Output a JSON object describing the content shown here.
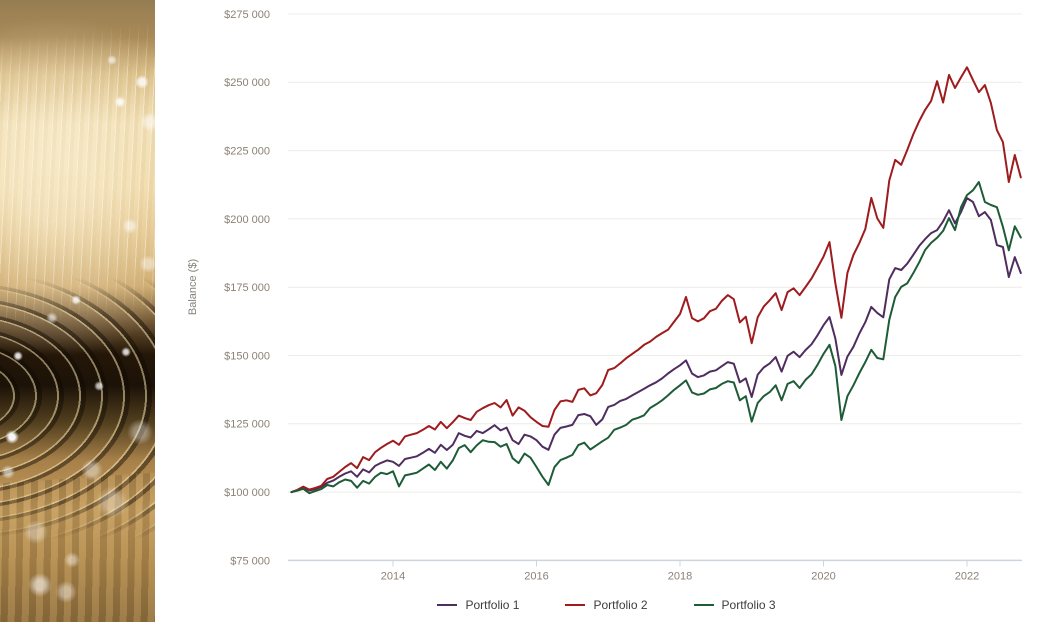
{
  "page": {
    "background": "#ffffff"
  },
  "left_panel": {
    "description": "Abstract photo of golden fiber-optic light strands swirling over a dark background with white bokeh highlights"
  },
  "colors": {
    "axis_text": "#8b8274",
    "axis_label": "#87827b",
    "grid_line": "#edece7",
    "axis_line": "#ccd5df",
    "legend_text": "#3d3d3d"
  },
  "chart_data": {
    "type": "line",
    "title": "",
    "xlabel": "",
    "ylabel": "Balance ($)",
    "x_start": "2012-07",
    "x_end": "2022-09",
    "x_interval": "monthly",
    "ylim": [
      75000,
      275000
    ],
    "grid": "horizontal",
    "legend_position": "bottom",
    "y_ticks": [
      {
        "value": 75000,
        "label": "$75 000"
      },
      {
        "value": 100000,
        "label": "$100 000"
      },
      {
        "value": 125000,
        "label": "$125 000"
      },
      {
        "value": 150000,
        "label": "$150 000"
      },
      {
        "value": 175000,
        "label": "$175 000"
      },
      {
        "value": 200000,
        "label": "$200 000"
      },
      {
        "value": 225000,
        "label": "$225 000"
      },
      {
        "value": 250000,
        "label": "$250 000"
      },
      {
        "value": 275000,
        "label": "$275 000"
      }
    ],
    "x_ticks": [
      {
        "year": 2014,
        "label": "2014"
      },
      {
        "year": 2016,
        "label": "2016"
      },
      {
        "year": 2018,
        "label": "2018"
      },
      {
        "year": 2020,
        "label": "2020"
      },
      {
        "year": 2022,
        "label": "2022"
      }
    ],
    "series": [
      {
        "name": "Portfolio 1",
        "color": "#4f2d5f",
        "values": [
          100000,
          100700,
          101600,
          100600,
          101100,
          101900,
          103400,
          104200,
          105600,
          106800,
          107600,
          105600,
          108300,
          107200,
          109600,
          110700,
          111600,
          111100,
          109600,
          112100,
          112600,
          113100,
          114400,
          115800,
          114400,
          117300,
          115400,
          117300,
          121600,
          120600,
          120000,
          122400,
          121600,
          123000,
          124500,
          122600,
          123600,
          119000,
          117600,
          121000,
          120400,
          119000,
          116600,
          115500,
          121000,
          123500,
          124000,
          124600,
          128200,
          128600,
          127800,
          124600,
          126600,
          131200,
          131900,
          133400,
          134100,
          135400,
          136600,
          137800,
          139100,
          140200,
          141600,
          143400,
          145000,
          146400,
          148200,
          143400,
          142100,
          142700,
          144100,
          144600,
          146100,
          147600,
          147000,
          140200,
          141600,
          134800,
          143000,
          145600,
          147100,
          149400,
          144100,
          149900,
          151400,
          149400,
          152000,
          154100,
          157400,
          161100,
          164100,
          156100,
          142900,
          149600,
          153200,
          158100,
          162200,
          167800,
          165600,
          164000,
          177900,
          182000,
          181300,
          183600,
          186800,
          190100,
          192600,
          194800,
          195900,
          199100,
          203200,
          198400,
          202500,
          207600,
          206200,
          201000,
          202500,
          199600,
          190400,
          189700,
          178700,
          186000,
          180200
        ]
      },
      {
        "name": "Portfolio 2",
        "color": "#9e1b1e",
        "values": [
          100000,
          100800,
          102000,
          100900,
          101500,
          102300,
          104800,
          105600,
          107400,
          109200,
          110600,
          108800,
          112800,
          111700,
          114600,
          116200,
          117600,
          118800,
          117300,
          120400,
          121000,
          121600,
          122800,
          124200,
          122900,
          125700,
          123400,
          125600,
          128000,
          127100,
          126400,
          129400,
          130700,
          131800,
          132600,
          131000,
          133700,
          128000,
          131000,
          129800,
          127400,
          125700,
          124200,
          123900,
          130000,
          133200,
          133600,
          133000,
          137400,
          138000,
          135400,
          136200,
          139200,
          144700,
          145400,
          147100,
          149000,
          150600,
          152100,
          153900,
          155100,
          156800,
          158200,
          159400,
          162300,
          165200,
          171400,
          163700,
          162500,
          163600,
          166200,
          167100,
          170000,
          172100,
          170600,
          162100,
          164200,
          154500,
          164000,
          167900,
          170200,
          172800,
          166600,
          173200,
          174600,
          172100,
          175100,
          178200,
          182100,
          186200,
          191500,
          176300,
          163800,
          180200,
          186800,
          191200,
          196300,
          207700,
          200200,
          196700,
          214100,
          221600,
          219800,
          225200,
          230900,
          235800,
          239900,
          243200,
          250400,
          242600,
          252700,
          247900,
          251800,
          255500,
          250800,
          246400,
          249000,
          242400,
          232500,
          228100,
          213500,
          223400,
          215200
        ]
      },
      {
        "name": "Portfolio 3",
        "color": "#1e5c38",
        "values": [
          100000,
          100500,
          101200,
          99600,
          100400,
          101100,
          102600,
          102100,
          103600,
          104600,
          104100,
          101600,
          104100,
          103100,
          105600,
          107100,
          106600,
          107600,
          102100,
          106100,
          106600,
          107100,
          108600,
          110100,
          108100,
          111100,
          108600,
          111600,
          116100,
          117200,
          114600,
          117100,
          119000,
          118400,
          118300,
          116600,
          117600,
          112400,
          110600,
          114100,
          112600,
          109200,
          105600,
          102600,
          109100,
          111700,
          112600,
          113600,
          117200,
          118100,
          115600,
          117100,
          118600,
          119900,
          122800,
          123600,
          124600,
          126500,
          127200,
          128100,
          130800,
          132100,
          133600,
          135400,
          137400,
          139100,
          140900,
          136500,
          135600,
          136100,
          137600,
          138100,
          139600,
          140600,
          140100,
          133600,
          135100,
          125800,
          132600,
          135100,
          136600,
          139100,
          133600,
          139600,
          140600,
          138100,
          141100,
          143100,
          146600,
          150600,
          153900,
          146100,
          126400,
          135100,
          139100,
          143600,
          147600,
          152100,
          149100,
          148600,
          163100,
          171400,
          175100,
          176400,
          180100,
          184100,
          188600,
          191200,
          193100,
          195600,
          200300,
          195900,
          204300,
          208700,
          210500,
          213500,
          206200,
          205100,
          204300,
          197100,
          188500,
          197300,
          193200
        ]
      }
    ]
  }
}
